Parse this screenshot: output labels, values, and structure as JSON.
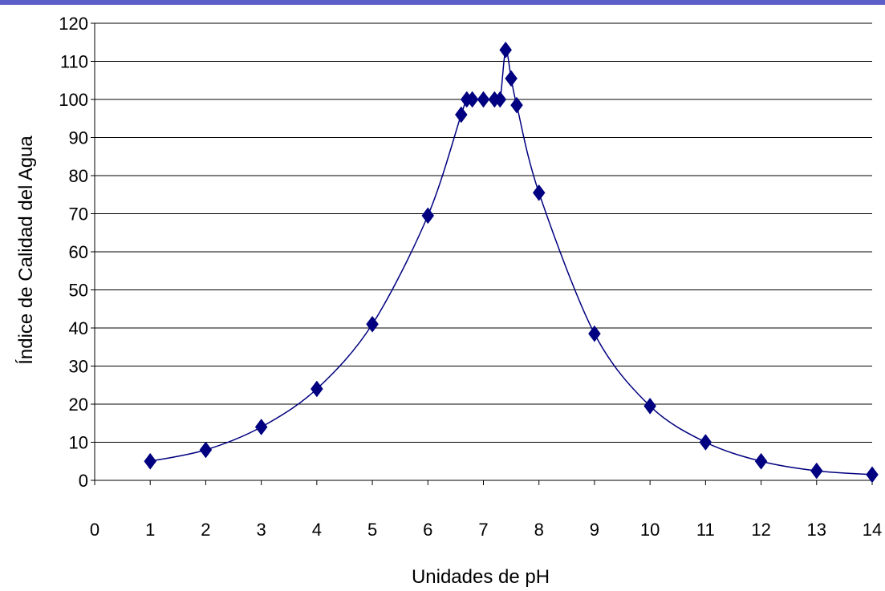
{
  "chart_data": {
    "type": "scatter",
    "title": "",
    "xlabel": "Unidades de pH",
    "ylabel": "Índice de Calidad del Agua",
    "xlim": [
      0,
      14
    ],
    "ylim": [
      0,
      120
    ],
    "xticks": [
      0,
      1,
      2,
      3,
      4,
      5,
      6,
      7,
      8,
      9,
      10,
      11,
      12,
      13,
      14
    ],
    "yticks": [
      0,
      10,
      20,
      30,
      40,
      50,
      60,
      70,
      80,
      90,
      100,
      110,
      120
    ],
    "grid": "horizontal",
    "legend": "none",
    "marker": "diamond",
    "color": "#000080",
    "series": [
      {
        "x": [
          1,
          2,
          3,
          4,
          5,
          6,
          6.6,
          6.7,
          6.8,
          7,
          7.2,
          7.3,
          7.4,
          7.5,
          7.6,
          8,
          9,
          10,
          11,
          12,
          13,
          14
        ],
        "y": [
          5,
          8,
          14,
          24,
          41,
          69.5,
          96,
          100,
          100,
          100,
          100,
          100,
          113,
          105.5,
          98.5,
          75.5,
          38.5,
          19.5,
          10,
          5,
          2.5,
          1.5
        ]
      }
    ]
  }
}
